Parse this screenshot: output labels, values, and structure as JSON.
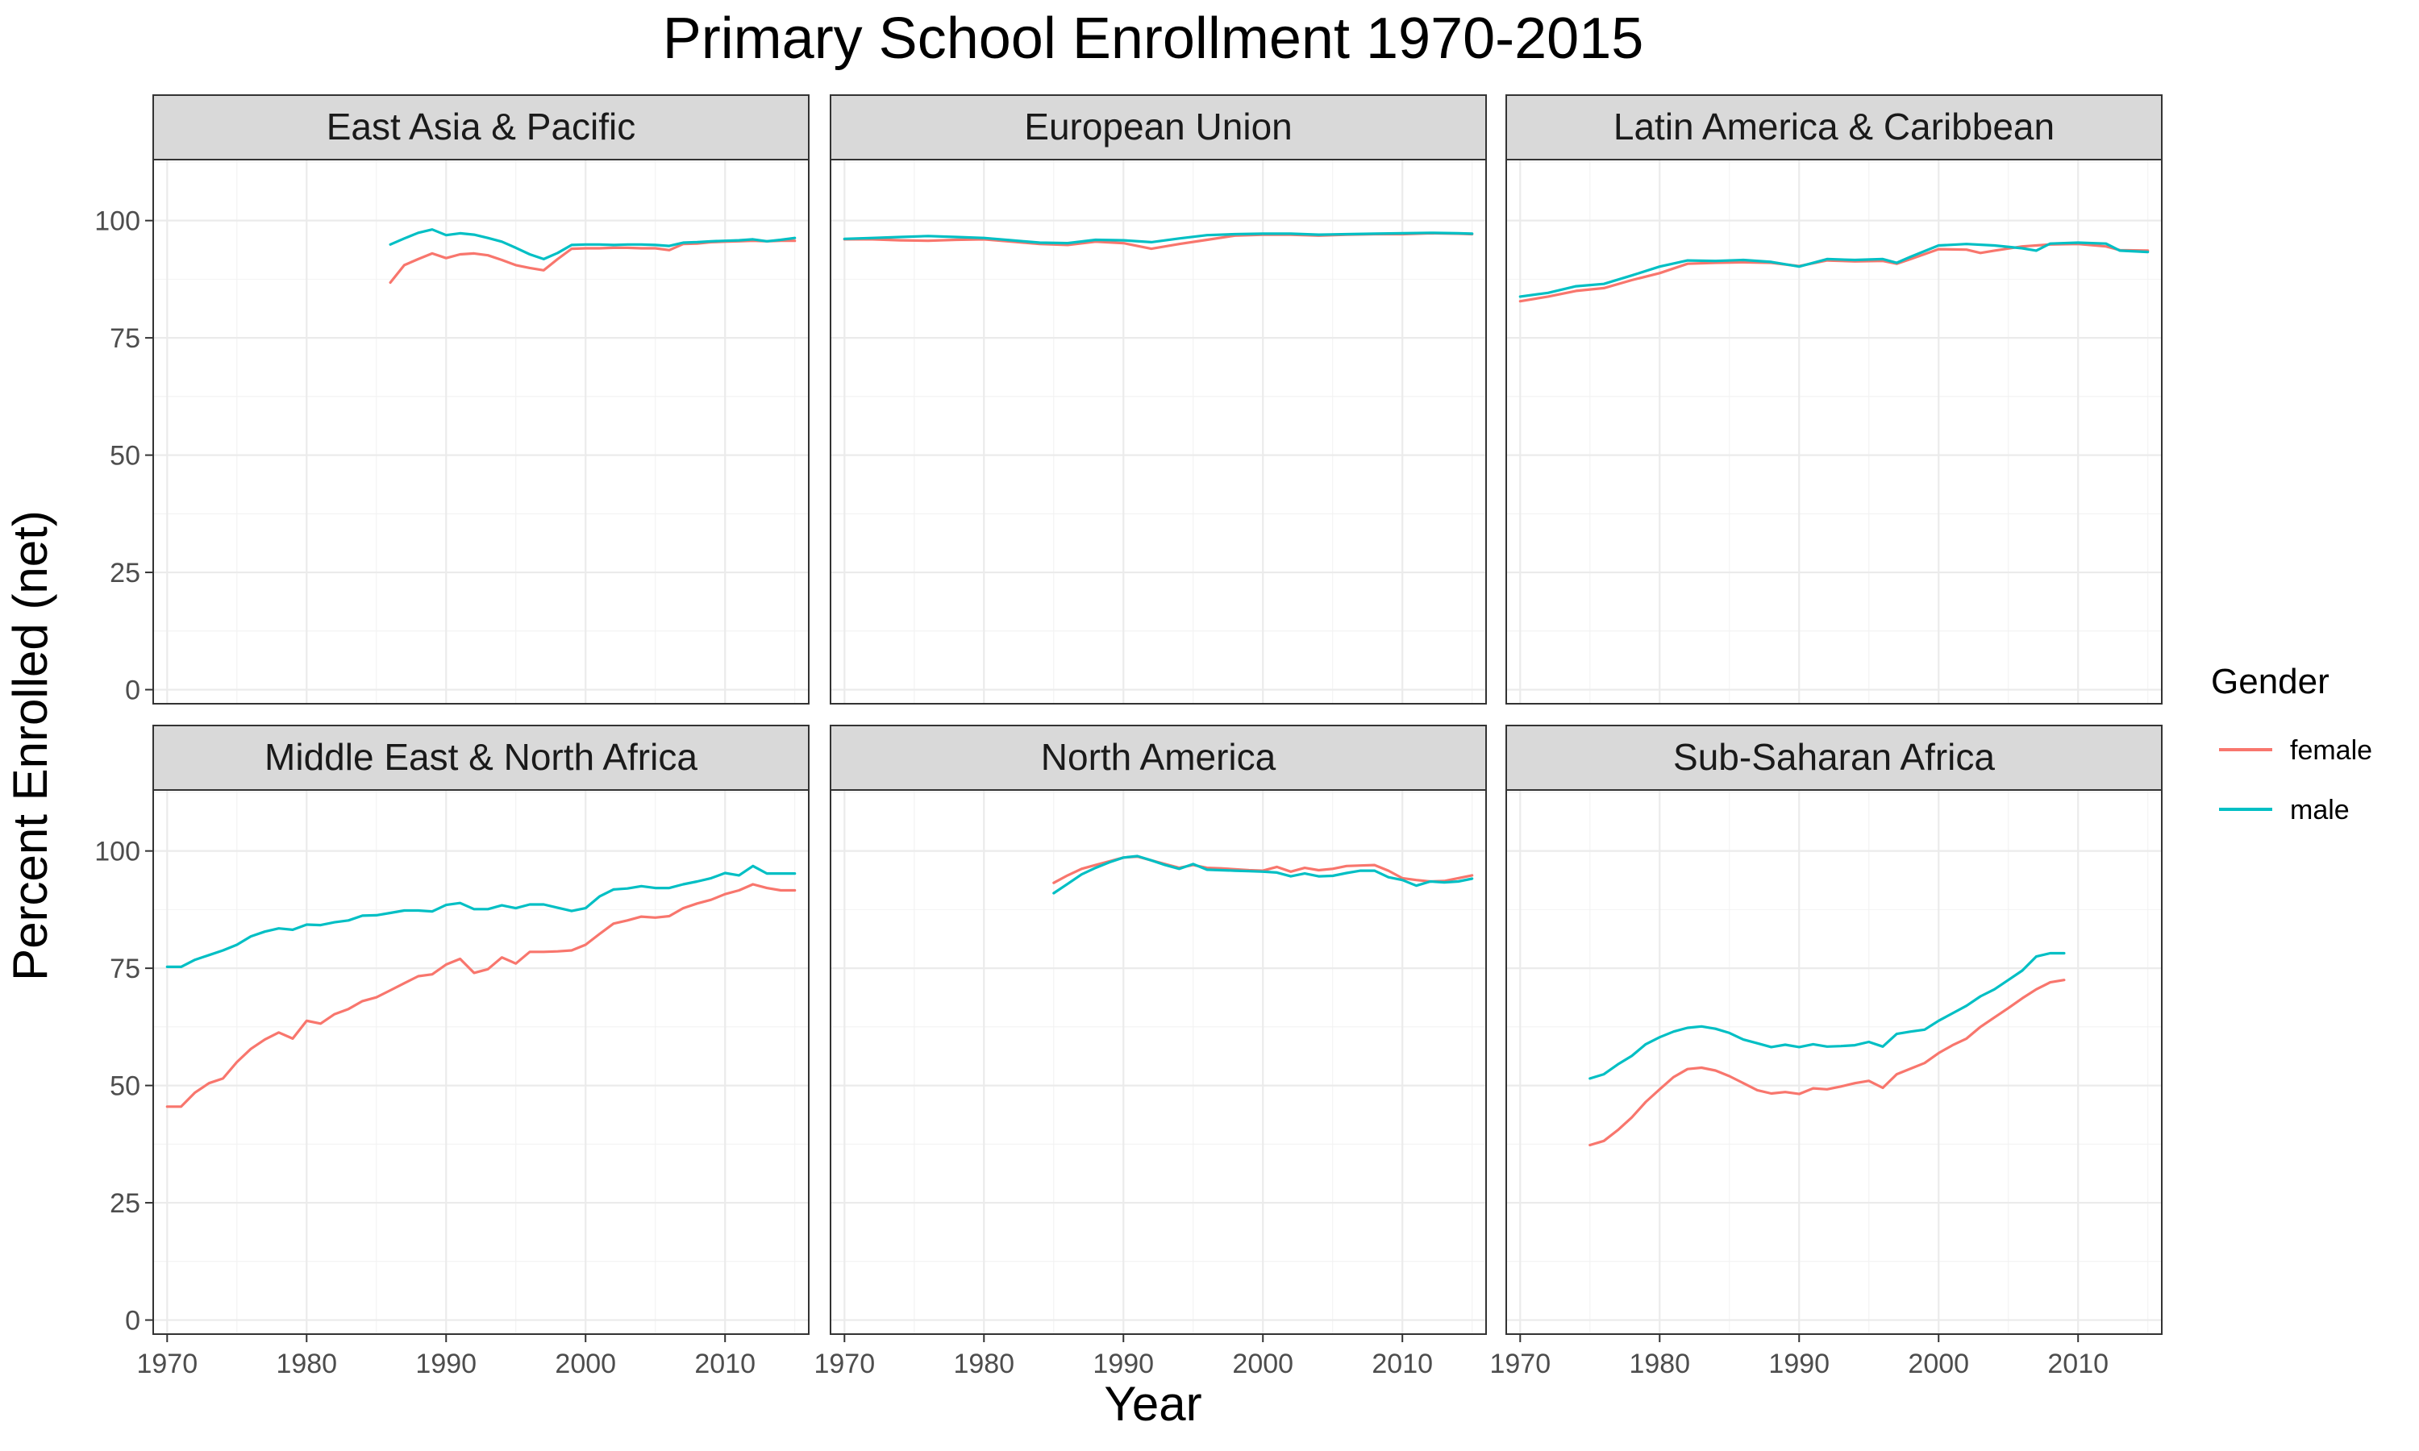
{
  "chart_data": {
    "type": "line",
    "title": "Primary School Enrollment 1970-2015",
    "xlabel": "Year",
    "ylabel": "Percent Enrolled (net)",
    "xlim": [
      1969,
      2016
    ],
    "ylim": [
      -3,
      113
    ],
    "x_ticks": [
      1970,
      1980,
      1990,
      2000,
      2010
    ],
    "x_tick_labels": [
      "1970",
      "1980",
      "1990",
      "2000",
      "2010"
    ],
    "y_ticks": [
      0,
      25,
      50,
      75,
      100
    ],
    "y_tick_labels": [
      "0",
      "25",
      "50",
      "75",
      "100"
    ],
    "grid": true,
    "legend": {
      "title": "Gender",
      "position": "right",
      "entries": [
        {
          "name": "female",
          "color": "#F8766D"
        },
        {
          "name": "male",
          "color": "#00BFC4"
        }
      ]
    },
    "panels": [
      {
        "title": "East Asia & Pacific",
        "series": [
          {
            "name": "female",
            "color": "#F8766D",
            "x": [
              1986,
              1987,
              1988,
              1989,
              1990,
              1991,
              1992,
              1993,
              1994,
              1995,
              1996,
              1997,
              1998,
              1999,
              2000,
              2001,
              2002,
              2003,
              2004,
              2005,
              2006,
              2007,
              2008,
              2009,
              2010,
              2011,
              2012,
              2013,
              2014,
              2015
            ],
            "y": [
              86.8,
              90.5,
              91.8,
              93.0,
              92.0,
              92.8,
              93.0,
              92.6,
              91.6,
              90.5,
              89.9,
              89.4,
              91.8,
              94.0,
              94.1,
              94.1,
              94.2,
              94.2,
              94.1,
              94.1,
              93.7,
              95.0,
              95.1,
              95.4,
              95.5,
              95.6,
              95.7,
              95.6,
              95.7,
              95.7
            ]
          },
          {
            "name": "male",
            "color": "#00BFC4",
            "x": [
              1986,
              1987,
              1988,
              1989,
              1990,
              1991,
              1992,
              1993,
              1994,
              1995,
              1996,
              1997,
              1998,
              1999,
              2000,
              2001,
              2002,
              2003,
              2004,
              2005,
              2006,
              2007,
              2008,
              2009,
              2010,
              2011,
              2012,
              2013,
              2014,
              2015
            ],
            "y": [
              94.9,
              96.2,
              97.4,
              98.1,
              96.9,
              97.3,
              97.0,
              96.3,
              95.5,
              94.2,
              92.8,
              91.8,
              93.1,
              94.8,
              94.9,
              94.9,
              94.8,
              94.9,
              94.9,
              94.8,
              94.6,
              95.3,
              95.4,
              95.6,
              95.7,
              95.8,
              96.0,
              95.6,
              95.9,
              96.3
            ]
          }
        ]
      },
      {
        "title": "European Union",
        "series": [
          {
            "name": "female",
            "color": "#F8766D",
            "x": [
              1970,
              1972,
              1974,
              1976,
              1978,
              1980,
              1982,
              1984,
              1986,
              1988,
              1990,
              1992,
              1994,
              1996,
              1998,
              2000,
              2002,
              2004,
              2006,
              2008,
              2010,
              2012,
              2014,
              2015
            ],
            "y": [
              96.0,
              96.0,
              95.8,
              95.7,
              95.9,
              96.0,
              95.5,
              95.0,
              94.8,
              95.5,
              95.2,
              94.0,
              95.0,
              95.9,
              96.8,
              97.0,
              97.0,
              96.8,
              97.0,
              97.1,
              97.1,
              97.3,
              97.2,
              97.1
            ]
          },
          {
            "name": "male",
            "color": "#00BFC4",
            "x": [
              1970,
              1972,
              1974,
              1976,
              1978,
              1980,
              1982,
              1984,
              1986,
              1988,
              1990,
              1992,
              1994,
              1996,
              1998,
              2000,
              2002,
              2004,
              2006,
              2008,
              2010,
              2012,
              2014,
              2015
            ],
            "y": [
              96.1,
              96.3,
              96.5,
              96.7,
              96.5,
              96.3,
              95.8,
              95.3,
              95.2,
              95.9,
              95.8,
              95.4,
              96.2,
              96.9,
              97.1,
              97.2,
              97.2,
              97.0,
              97.1,
              97.2,
              97.3,
              97.4,
              97.3,
              97.2
            ]
          }
        ]
      },
      {
        "title": "Latin America & Caribbean",
        "series": [
          {
            "name": "female",
            "color": "#F8766D",
            "x": [
              1970,
              1972,
              1974,
              1976,
              1978,
              1980,
              1982,
              1984,
              1986,
              1988,
              1990,
              1992,
              1994,
              1996,
              1997,
              1998,
              2000,
              2002,
              2003,
              2004,
              2006,
              2008,
              2010,
              2012,
              2013,
              2015
            ],
            "y": [
              82.8,
              83.8,
              85.0,
              85.6,
              87.3,
              88.8,
              90.8,
              91.0,
              91.1,
              91.0,
              90.3,
              91.5,
              91.3,
              91.4,
              90.8,
              91.8,
              93.9,
              93.8,
              93.1,
              93.6,
              94.5,
              94.9,
              95.0,
              94.5,
              93.7,
              93.6
            ]
          },
          {
            "name": "male",
            "color": "#00BFC4",
            "x": [
              1970,
              1972,
              1974,
              1976,
              1978,
              1980,
              1982,
              1984,
              1986,
              1988,
              1990,
              1992,
              1994,
              1996,
              1997,
              1998,
              2000,
              2002,
              2004,
              2006,
              2007,
              2008,
              2010,
              2012,
              2013,
              2015
            ],
            "y": [
              83.8,
              84.6,
              86.0,
              86.5,
              88.3,
              90.2,
              91.5,
              91.4,
              91.6,
              91.2,
              90.2,
              91.8,
              91.6,
              91.8,
              91.0,
              92.3,
              94.7,
              95.0,
              94.7,
              94.1,
              93.6,
              95.1,
              95.3,
              95.1,
              93.6,
              93.3
            ]
          }
        ]
      },
      {
        "title": "Middle East & North Africa",
        "series": [
          {
            "name": "female",
            "color": "#F8766D",
            "x": [
              1970,
              1971,
              1972,
              1973,
              1974,
              1975,
              1976,
              1977,
              1978,
              1979,
              1980,
              1981,
              1982,
              1983,
              1984,
              1985,
              1986,
              1987,
              1988,
              1989,
              1990,
              1991,
              1992,
              1993,
              1994,
              1995,
              1996,
              1997,
              1998,
              1999,
              2000,
              2001,
              2002,
              2003,
              2004,
              2005,
              2006,
              2007,
              2008,
              2009,
              2010,
              2011,
              2012,
              2013,
              2014,
              2015
            ],
            "y": [
              45.5,
              45.5,
              48.5,
              50.5,
              51.5,
              55.0,
              57.8,
              59.8,
              61.3,
              60.0,
              63.8,
              63.2,
              65.2,
              66.3,
              68.0,
              68.8,
              70.3,
              71.8,
              73.3,
              73.7,
              75.8,
              77.0,
              74.0,
              74.8,
              77.3,
              76.0,
              78.5,
              78.5,
              78.6,
              78.8,
              80.0,
              82.3,
              84.5,
              85.2,
              86.0,
              85.8,
              86.1,
              87.8,
              88.8,
              89.6,
              90.8,
              91.6,
              92.9,
              92.1,
              91.6,
              91.6
            ]
          },
          {
            "name": "male",
            "color": "#00BFC4",
            "x": [
              1970,
              1971,
              1972,
              1973,
              1974,
              1975,
              1976,
              1977,
              1978,
              1979,
              1980,
              1981,
              1982,
              1983,
              1984,
              1985,
              1986,
              1987,
              1988,
              1989,
              1990,
              1991,
              1992,
              1993,
              1994,
              1995,
              1996,
              1997,
              1998,
              1999,
              2000,
              2001,
              2002,
              2003,
              2004,
              2005,
              2006,
              2007,
              2008,
              2009,
              2010,
              2011,
              2012,
              2013,
              2014,
              2015
            ],
            "y": [
              75.3,
              75.3,
              76.8,
              77.8,
              78.8,
              80.0,
              81.8,
              82.8,
              83.5,
              83.2,
              84.3,
              84.2,
              84.8,
              85.2,
              86.2,
              86.3,
              86.8,
              87.3,
              87.3,
              87.1,
              88.5,
              88.9,
              87.6,
              87.6,
              88.4,
              87.8,
              88.6,
              88.6,
              87.9,
              87.2,
              87.8,
              90.3,
              91.8,
              92.0,
              92.5,
              92.1,
              92.1,
              92.9,
              93.5,
              94.2,
              95.3,
              94.8,
              96.8,
              95.2,
              95.2,
              95.2
            ]
          }
        ]
      },
      {
        "title": "North America",
        "series": [
          {
            "name": "female",
            "color": "#F8766D",
            "x": [
              1985,
              1986,
              1987,
              1988,
              1989,
              1990,
              1991,
              1992,
              1993,
              1994,
              1995,
              1996,
              1997,
              1998,
              1999,
              2000,
              2001,
              2002,
              2003,
              2004,
              2005,
              2006,
              2007,
              2008,
              2009,
              2010,
              2011,
              2012,
              2013,
              2014,
              2015
            ],
            "y": [
              93.2,
              94.8,
              96.2,
              97.0,
              97.8,
              98.6,
              98.8,
              98.0,
              97.2,
              96.4,
              97.0,
              96.4,
              96.3,
              96.1,
              95.9,
              95.8,
              96.6,
              95.6,
              96.4,
              95.9,
              96.2,
              96.8,
              96.9,
              97.0,
              95.8,
              94.2,
              93.8,
              93.5,
              93.6,
              94.2,
              94.8
            ]
          },
          {
            "name": "male",
            "color": "#00BFC4",
            "x": [
              1985,
              1986,
              1987,
              1988,
              1989,
              1990,
              1991,
              1992,
              1993,
              1994,
              1995,
              1996,
              1997,
              1998,
              1999,
              2000,
              2001,
              2002,
              2003,
              2004,
              2005,
              2006,
              2007,
              2008,
              2009,
              2010,
              2011,
              2012,
              2013,
              2014,
              2015
            ],
            "y": [
              91.0,
              93.0,
              95.0,
              96.4,
              97.6,
              98.6,
              98.9,
              98.0,
              97.0,
              96.2,
              97.2,
              96.0,
              95.9,
              95.8,
              95.7,
              95.6,
              95.4,
              94.6,
              95.2,
              94.6,
              94.7,
              95.3,
              95.8,
              95.8,
              94.4,
              93.8,
              92.6,
              93.5,
              93.3,
              93.5,
              94.1
            ]
          }
        ]
      },
      {
        "title": "Sub-Saharan Africa",
        "series": [
          {
            "name": "female",
            "color": "#F8766D",
            "x": [
              1975,
              1976,
              1977,
              1978,
              1979,
              1980,
              1981,
              1982,
              1983,
              1984,
              1985,
              1986,
              1987,
              1988,
              1989,
              1990,
              1991,
              1992,
              1993,
              1994,
              1995,
              1996,
              1997,
              1998,
              1999,
              2000,
              2001,
              2002,
              2003,
              2004,
              2005,
              2006,
              2007,
              2008,
              2009
            ],
            "y": [
              37.3,
              38.2,
              40.5,
              43.2,
              46.5,
              49.2,
              51.8,
              53.5,
              53.8,
              53.2,
              52.0,
              50.5,
              49.0,
              48.3,
              48.6,
              48.2,
              49.4,
              49.2,
              49.8,
              50.5,
              51.0,
              49.5,
              52.4,
              53.6,
              54.8,
              56.9,
              58.6,
              60.0,
              62.5,
              64.5,
              66.5,
              68.6,
              70.5,
              72.0,
              72.5
            ]
          },
          {
            "name": "male",
            "color": "#00BFC4",
            "x": [
              1975,
              1976,
              1977,
              1978,
              1979,
              1980,
              1981,
              1982,
              1983,
              1984,
              1985,
              1986,
              1987,
              1988,
              1989,
              1990,
              1991,
              1992,
              1993,
              1994,
              1995,
              1996,
              1997,
              1998,
              1999,
              2000,
              2001,
              2002,
              2003,
              2004,
              2005,
              2006,
              2007,
              2008,
              2009
            ],
            "y": [
              51.5,
              52.4,
              54.5,
              56.3,
              58.8,
              60.3,
              61.5,
              62.3,
              62.6,
              62.1,
              61.2,
              59.8,
              59.0,
              58.2,
              58.7,
              58.2,
              58.8,
              58.3,
              58.4,
              58.6,
              59.3,
              58.3,
              61.0,
              61.5,
              61.9,
              63.8,
              65.4,
              67.0,
              69.0,
              70.5,
              72.5,
              74.5,
              77.5,
              78.2,
              78.2
            ]
          }
        ]
      }
    ]
  }
}
